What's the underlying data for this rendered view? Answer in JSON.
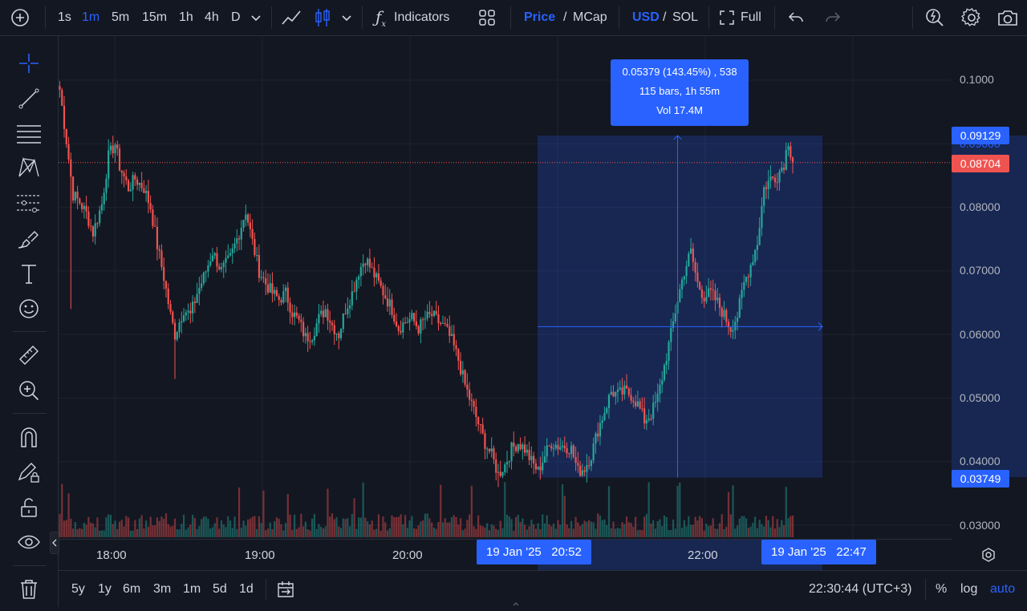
{
  "toolbar": {
    "intervals": [
      "1s",
      "1m",
      "5m",
      "15m",
      "1h",
      "4h",
      "D"
    ],
    "active_interval": "1m",
    "indicators_label": "Indicators",
    "price_label": "Price",
    "mcap_label": "MCap",
    "slash": "/",
    "usd_label": "USD",
    "sol_label": "SOL",
    "full_label": "Full"
  },
  "price_axis": {
    "ticks": [
      "0.1000",
      "0.09000",
      "0.08000",
      "0.07000",
      "0.06000",
      "0.05000",
      "0.04000",
      "0.03000"
    ],
    "high_label": "0.09129",
    "current_label": "0.08704",
    "low_label": "0.03749"
  },
  "measure": {
    "line1": "0.05379 (143.45%) , 538",
    "line2": "115 bars, 1h 55m",
    "line3": "Vol 17.4M"
  },
  "time_axis": {
    "labels": [
      "18:00",
      "19:00",
      "20:00",
      "22:00"
    ],
    "start_label": "19 Jan '25   20:52",
    "end_label": "19 Jan '25   22:47"
  },
  "bottom": {
    "ranges": [
      "5y",
      "1y",
      "6m",
      "3m",
      "1m",
      "5d",
      "1d"
    ],
    "clock": "22:30:44 (UTC+3)",
    "percent": "%",
    "log": "log",
    "auto": "auto"
  },
  "colors": {
    "up": "#26a69a",
    "down": "#ef5350",
    "accent": "#2962ff",
    "background": "#131722"
  },
  "chart_data": {
    "type": "candlestick",
    "x_range": [
      "17:31",
      "22:47"
    ],
    "ylim": [
      0.028,
      0.103
    ],
    "anchors": [
      [
        0,
        0.0985
      ],
      [
        3,
        0.0905
      ],
      [
        6,
        0.082
      ],
      [
        9,
        0.0808
      ],
      [
        12,
        0.079
      ],
      [
        15,
        0.076
      ],
      [
        19,
        0.0805
      ],
      [
        22,
        0.088
      ],
      [
        25,
        0.09
      ],
      [
        27,
        0.0865
      ],
      [
        31,
        0.083
      ],
      [
        34,
        0.0845
      ],
      [
        38,
        0.083
      ],
      [
        41,
        0.08
      ],
      [
        44,
        0.074
      ],
      [
        47,
        0.069
      ],
      [
        50,
        0.063
      ],
      [
        52,
        0.06
      ],
      [
        56,
        0.064
      ],
      [
        59,
        0.063
      ],
      [
        62,
        0.0665
      ],
      [
        65,
        0.069
      ],
      [
        69,
        0.073
      ],
      [
        73,
        0.07
      ],
      [
        77,
        0.072
      ],
      [
        81,
        0.076
      ],
      [
        84,
        0.0795
      ],
      [
        87,
        0.0745
      ],
      [
        90,
        0.07
      ],
      [
        93,
        0.068
      ],
      [
        96,
        0.0665
      ],
      [
        99,
        0.0655
      ],
      [
        102,
        0.0665
      ],
      [
        105,
        0.0635
      ],
      [
        108,
        0.062
      ],
      [
        111,
        0.0595
      ],
      [
        114,
        0.06
      ],
      [
        117,
        0.0625
      ],
      [
        120,
        0.064
      ],
      [
        123,
        0.0615
      ],
      [
        126,
        0.06
      ],
      [
        129,
        0.064
      ],
      [
        132,
        0.0665
      ],
      [
        135,
        0.07
      ],
      [
        138,
        0.072
      ],
      [
        141,
        0.07
      ],
      [
        144,
        0.068
      ],
      [
        147,
        0.066
      ],
      [
        150,
        0.064
      ],
      [
        153,
        0.061
      ],
      [
        156,
        0.062
      ],
      [
        159,
        0.0625
      ],
      [
        162,
        0.061
      ],
      [
        165,
        0.0625
      ],
      [
        168,
        0.063
      ],
      [
        171,
        0.062
      ],
      [
        174,
        0.061
      ],
      [
        177,
        0.059
      ],
      [
        180,
        0.056
      ],
      [
        183,
        0.052
      ],
      [
        186,
        0.049
      ],
      [
        189,
        0.046
      ],
      [
        192,
        0.043
      ],
      [
        195,
        0.041
      ],
      [
        198,
        0.038
      ],
      [
        201,
        0.0395
      ],
      [
        204,
        0.042
      ],
      [
        207,
        0.043
      ],
      [
        210,
        0.042
      ],
      [
        213,
        0.04
      ],
      [
        216,
        0.0385
      ],
      [
        219,
        0.041
      ],
      [
        222,
        0.043
      ],
      [
        225,
        0.0425
      ],
      [
        228,
        0.0425
      ],
      [
        231,
        0.042
      ],
      [
        234,
        0.0385
      ],
      [
        237,
        0.039
      ],
      [
        240,
        0.041
      ],
      [
        243,
        0.045
      ],
      [
        246,
        0.048
      ],
      [
        249,
        0.051
      ],
      [
        252,
        0.0505
      ],
      [
        255,
        0.051
      ],
      [
        258,
        0.0505
      ],
      [
        261,
        0.049
      ],
      [
        264,
        0.0465
      ],
      [
        267,
        0.0475
      ],
      [
        270,
        0.05
      ],
      [
        273,
        0.055
      ],
      [
        276,
        0.06
      ],
      [
        279,
        0.0655
      ],
      [
        282,
        0.07
      ],
      [
        285,
        0.073
      ],
      [
        288,
        0.068
      ],
      [
        291,
        0.066
      ],
      [
        294,
        0.0665
      ],
      [
        297,
        0.065
      ],
      [
        300,
        0.063
      ],
      [
        303,
        0.061
      ],
      [
        306,
        0.063
      ],
      [
        309,
        0.068
      ],
      [
        312,
        0.071
      ],
      [
        315,
        0.0745
      ],
      [
        318,
        0.083
      ],
      [
        321,
        0.0845
      ],
      [
        324,
        0.085
      ],
      [
        327,
        0.087
      ],
      [
        329,
        0.0905
      ],
      [
        331,
        0.087
      ]
    ],
    "measure_range": {
      "start": "20:52",
      "end": "22:47",
      "low": 0.03749,
      "high": 0.09129,
      "change": 0.05379,
      "change_pct": 143.45,
      "bars": 115,
      "volume": "17.4M"
    },
    "current_price": 0.08704
  }
}
